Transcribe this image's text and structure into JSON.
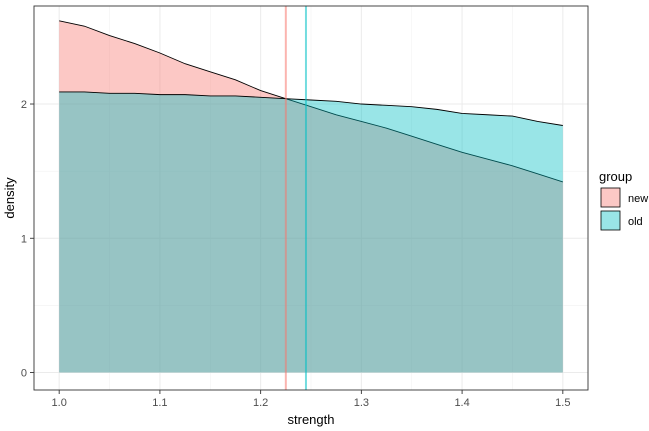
{
  "chart_data": {
    "type": "area",
    "title": "",
    "xlabel": "strength",
    "ylabel": "density",
    "xlim": [
      0.975,
      1.525
    ],
    "ylim": [
      -0.13,
      2.73
    ],
    "x_ticks": [
      1.0,
      1.1,
      1.2,
      1.3,
      1.4,
      1.5
    ],
    "x_tick_labels": [
      "1.0",
      "1.1",
      "1.2",
      "1.3",
      "1.4",
      "1.5"
    ],
    "y_ticks": [
      0,
      1,
      2
    ],
    "y_tick_labels": [
      "0",
      "1",
      "2"
    ],
    "grid": true,
    "legend": {
      "title": "group",
      "position": "right"
    },
    "series": [
      {
        "name": "new",
        "color": "#F8766D",
        "x": [
          1.0,
          1.025,
          1.05,
          1.075,
          1.1,
          1.125,
          1.15,
          1.175,
          1.2,
          1.225,
          1.25,
          1.275,
          1.3,
          1.325,
          1.35,
          1.375,
          1.4,
          1.425,
          1.45,
          1.475,
          1.5
        ],
        "y": [
          2.62,
          2.58,
          2.51,
          2.45,
          2.38,
          2.3,
          2.24,
          2.18,
          2.1,
          2.04,
          1.98,
          1.92,
          1.87,
          1.82,
          1.76,
          1.7,
          1.64,
          1.59,
          1.54,
          1.48,
          1.42
        ]
      },
      {
        "name": "old",
        "color": "#00BFC4",
        "x": [
          1.0,
          1.025,
          1.05,
          1.075,
          1.1,
          1.125,
          1.15,
          1.175,
          1.2,
          1.225,
          1.25,
          1.275,
          1.3,
          1.325,
          1.35,
          1.375,
          1.4,
          1.425,
          1.45,
          1.475,
          1.5
        ],
        "y": [
          2.09,
          2.09,
          2.08,
          2.08,
          2.07,
          2.07,
          2.06,
          2.06,
          2.05,
          2.04,
          2.03,
          2.02,
          2.0,
          1.99,
          1.98,
          1.96,
          1.93,
          1.92,
          1.91,
          1.87,
          1.84
        ]
      }
    ],
    "vlines": [
      {
        "x": 1.225,
        "color": "#F8766D",
        "series": "new"
      },
      {
        "x": 1.245,
        "color": "#00BFC4",
        "series": "old"
      }
    ]
  }
}
